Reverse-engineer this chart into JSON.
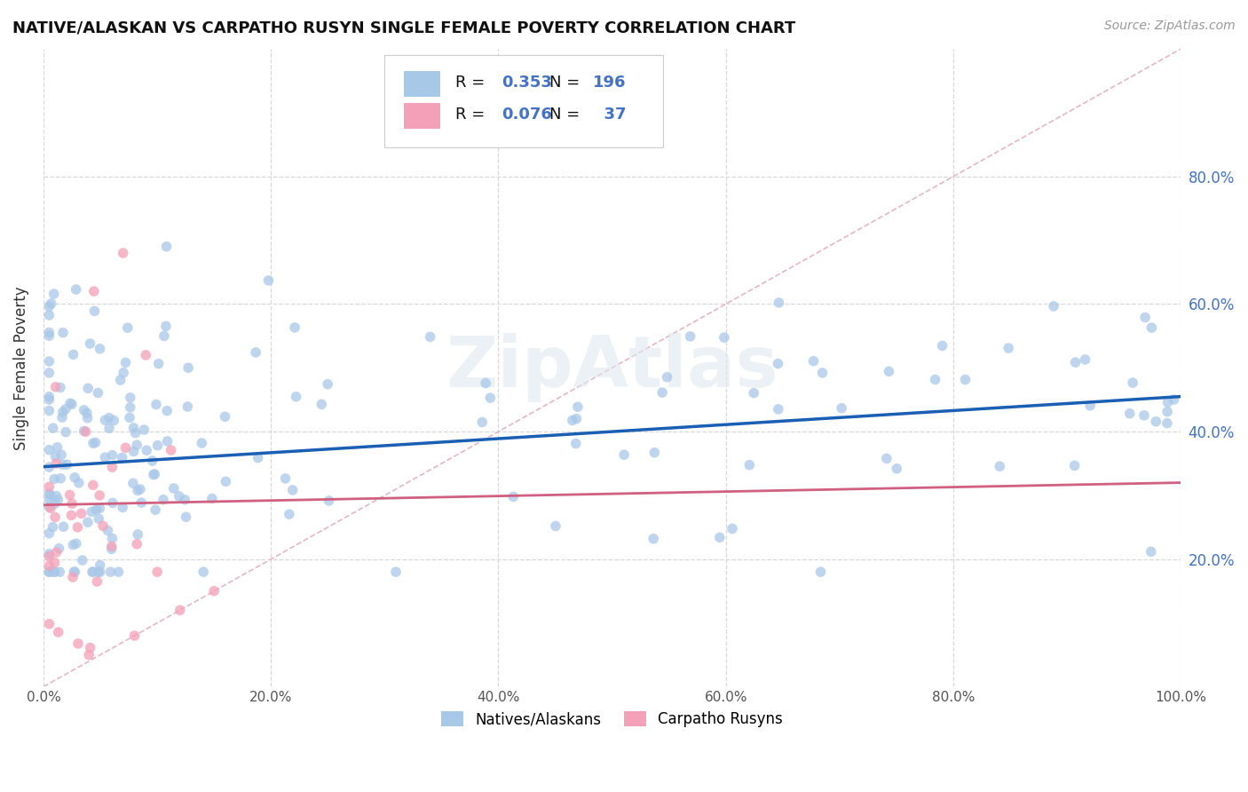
{
  "title": "NATIVE/ALASKAN VS CARPATHO RUSYN SINGLE FEMALE POVERTY CORRELATION CHART",
  "source": "Source: ZipAtlas.com",
  "ylabel": "Single Female Poverty",
  "xlabel": "",
  "xlim": [
    0.0,
    1.0
  ],
  "ylim": [
    0.0,
    1.0
  ],
  "xtick_vals": [
    0.0,
    0.2,
    0.4,
    0.6,
    0.8,
    1.0
  ],
  "ytick_vals": [
    0.2,
    0.4,
    0.6,
    0.8
  ],
  "blue_R": 0.353,
  "blue_N": 196,
  "pink_R": 0.076,
  "pink_N": 37,
  "blue_color": "#a8c8e8",
  "blue_line_color": "#1a5fb4",
  "pink_color": "#f4a0b8",
  "pink_line_color": "#d06080",
  "diagonal_color": "#e0b0c0",
  "right_tick_color": "#4472c4",
  "scatter_alpha": 0.75,
  "marker_size": 70,
  "blue_trend_y_start": 0.345,
  "blue_trend_y_end": 0.455,
  "pink_trend_y_start": 0.285,
  "pink_trend_y_end": 0.32,
  "legend_blue_label": "Natives/Alaskans",
  "legend_pink_label": "Carpatho Rusyns",
  "watermark": "ZipAtlas",
  "background_color": "#ffffff",
  "grid_color": "#d8d8d8"
}
